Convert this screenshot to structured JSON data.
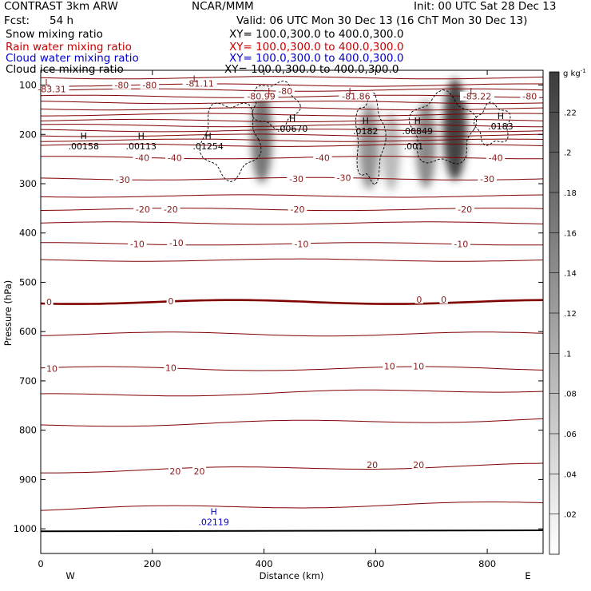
{
  "header": {
    "model": "CONTRAST  3km ARW",
    "org": "NCAR/MMM",
    "init": "Init: 00 UTC Sat 28 Dec 13",
    "fcst_label": "Fcst:",
    "fcst_value": "54 h",
    "valid": "Valid: 06 UTC Mon 30 Dec 13 (16 ChT Mon 30 Dec 13)"
  },
  "fields": [
    {
      "name": "Snow mixing ratio",
      "xy": "XY= 100.0,300.0 to 400.0,300.0",
      "color": "#000000"
    },
    {
      "name": "Rain water mixing ratio",
      "xy": "XY= 100.0,300.0 to 400.0,300.0",
      "color": "#cc0000"
    },
    {
      "name": "Cloud water mixing ratio",
      "xy": "XY= 100.0,300.0 to 400.0,300.0",
      "color": "#0000cc"
    },
    {
      "name": "Cloud ice mixing ratio",
      "xy": "XY= 100.0,300.0 to 400.0,300.0",
      "color": "#000000"
    }
  ],
  "chart_data": {
    "type": "cross-section",
    "xlabel": "Distance (km)",
    "ylabel": "Pressure (hPa)",
    "xlim": [
      0,
      900
    ],
    "ylim": [
      1050,
      70
    ],
    "xticks": [
      0,
      200,
      400,
      600,
      800
    ],
    "yticks": [
      100,
      200,
      300,
      400,
      500,
      600,
      700,
      800,
      900,
      1000
    ],
    "direction_left": "W",
    "direction_right": "E",
    "colorbar": {
      "unit": "g kg",
      "unit_exp": "-1",
      "range": [
        0,
        0.24
      ],
      "ticks": [
        ".22",
        ".2",
        ".18",
        ".16",
        ".14",
        ".12",
        ".1",
        ".08",
        ".06",
        ".04",
        ".02"
      ],
      "tick_values": [
        0.22,
        0.2,
        0.18,
        0.16,
        0.14,
        0.12,
        0.1,
        0.08,
        0.06,
        0.04,
        0.02
      ]
    },
    "temperature_labels": [
      {
        "x": 20,
        "p": 108,
        "v": "-83.31"
      },
      {
        "x": 145,
        "p": 100,
        "v": "-80"
      },
      {
        "x": 195,
        "p": 100,
        "v": "-80"
      },
      {
        "x": 285,
        "p": 97,
        "v": "-81.11"
      },
      {
        "x": 438,
        "p": 112,
        "v": "-80"
      },
      {
        "x": 395,
        "p": 123,
        "v": "-80.99"
      },
      {
        "x": 565,
        "p": 123,
        "v": "-81.86"
      },
      {
        "x": 782,
        "p": 123,
        "v": "-83.22"
      },
      {
        "x": 876,
        "p": 123,
        "v": "-80"
      },
      {
        "x": 182,
        "p": 247,
        "v": "-40"
      },
      {
        "x": 240,
        "p": 247,
        "v": "-40"
      },
      {
        "x": 505,
        "p": 247,
        "v": "-40"
      },
      {
        "x": 815,
        "p": 247,
        "v": "-40"
      },
      {
        "x": 147,
        "p": 292,
        "v": "-30"
      },
      {
        "x": 458,
        "p": 290,
        "v": "-30"
      },
      {
        "x": 543,
        "p": 288,
        "v": "-30"
      },
      {
        "x": 800,
        "p": 290,
        "v": "-30"
      },
      {
        "x": 183,
        "p": 352,
        "v": "-20"
      },
      {
        "x": 233,
        "p": 352,
        "v": "-20"
      },
      {
        "x": 460,
        "p": 352,
        "v": "-20"
      },
      {
        "x": 760,
        "p": 352,
        "v": "-20"
      },
      {
        "x": 173,
        "p": 422,
        "v": "-10"
      },
      {
        "x": 243,
        "p": 420,
        "v": "-10"
      },
      {
        "x": 467,
        "p": 422,
        "v": "-10"
      },
      {
        "x": 753,
        "p": 422,
        "v": "-10"
      },
      {
        "x": 15,
        "p": 540,
        "v": "0"
      },
      {
        "x": 233,
        "p": 538,
        "v": "0"
      },
      {
        "x": 678,
        "p": 535,
        "v": "0"
      },
      {
        "x": 722,
        "p": 535,
        "v": "0"
      },
      {
        "x": 20,
        "p": 675,
        "v": "10"
      },
      {
        "x": 233,
        "p": 673,
        "v": "10"
      },
      {
        "x": 625,
        "p": 670,
        "v": "10"
      },
      {
        "x": 677,
        "p": 670,
        "v": "10"
      },
      {
        "x": 241,
        "p": 883,
        "v": "20"
      },
      {
        "x": 284,
        "p": 883,
        "v": "20"
      },
      {
        "x": 594,
        "p": 870,
        "v": "20"
      },
      {
        "x": 677,
        "p": 870,
        "v": "20"
      }
    ],
    "extrema": [
      {
        "x": 12,
        "p": 94,
        "type": "L",
        "v": "",
        "color": "#8b1a1a"
      },
      {
        "x": 277,
        "p": 87,
        "type": "L",
        "v": "",
        "color": "#8b1a1a"
      },
      {
        "x": 411,
        "p": 112,
        "type": "L",
        "v": "",
        "color": "#8b1a1a"
      },
      {
        "x": 556,
        "p": 112,
        "type": "L",
        "v": "",
        "color": "#8b1a1a"
      },
      {
        "x": 773,
        "p": 112,
        "type": "L",
        "v": "",
        "color": "#8b1a1a"
      },
      {
        "x": 77,
        "p": 203,
        "type": "H",
        "v": ".00158",
        "color": "#000000"
      },
      {
        "x": 180,
        "p": 203,
        "type": "H",
        "v": ".00113",
        "color": "#000000"
      },
      {
        "x": 300,
        "p": 203,
        "type": "H",
        "v": ".01254",
        "color": "#000000"
      },
      {
        "x": 451,
        "p": 167,
        "type": "H",
        "v": ".00670",
        "color": "#000000"
      },
      {
        "x": 582,
        "p": 172,
        "type": "H",
        "v": ".0182",
        "color": "#000000"
      },
      {
        "x": 675,
        "p": 172,
        "type": "H",
        "v": ".00849",
        "color": "#000000"
      },
      {
        "x": 824,
        "p": 162,
        "type": "H",
        "v": ".0183",
        "color": "#000000"
      },
      {
        "x": 668,
        "p": 224,
        "type": "",
        "v": ".001",
        "color": "#000000"
      },
      {
        "x": 310,
        "p": 965,
        "type": "H",
        "v": ".02119",
        "color": "#0000cc"
      }
    ],
    "snow_maxima": [
      {
        "x": 396,
        "p": 205,
        "amp": 0.7
      },
      {
        "x": 588,
        "p": 225,
        "amp": 0.55
      },
      {
        "x": 628,
        "p": 235,
        "amp": 0.35
      },
      {
        "x": 690,
        "p": 220,
        "amp": 0.6
      },
      {
        "x": 742,
        "p": 190,
        "amp": 0.95
      }
    ],
    "ice_contour_value": 0.001
  }
}
